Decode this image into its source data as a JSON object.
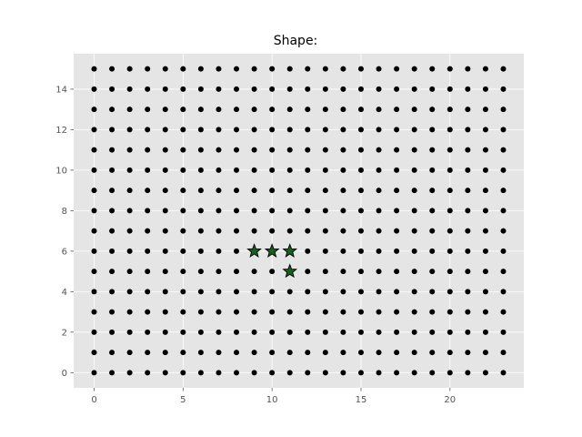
{
  "chart_data": {
    "type": "scatter",
    "title": "Shape:",
    "xlabel": "",
    "ylabel": "",
    "xlim": [
      -1.15,
      24.15
    ],
    "ylim": [
      -0.75,
      15.75
    ],
    "xticks": [
      0,
      5,
      10,
      15,
      20
    ],
    "yticks": [
      0,
      2,
      4,
      6,
      8,
      10,
      12,
      14
    ],
    "grid": true,
    "background": "#e5e5e5",
    "grid_color": "#ffffff",
    "grid_points": {
      "x_range": [
        0,
        23
      ],
      "y_range": [
        0,
        15
      ],
      "marker": "circle",
      "color": "#000000"
    },
    "series": [
      {
        "marker": "star",
        "color": "#1b5e20",
        "edge_color": "#000000",
        "points": [
          {
            "x": 9,
            "y": 6
          },
          {
            "x": 10,
            "y": 6
          },
          {
            "x": 11,
            "y": 6
          },
          {
            "x": 11,
            "y": 5
          }
        ]
      }
    ]
  }
}
